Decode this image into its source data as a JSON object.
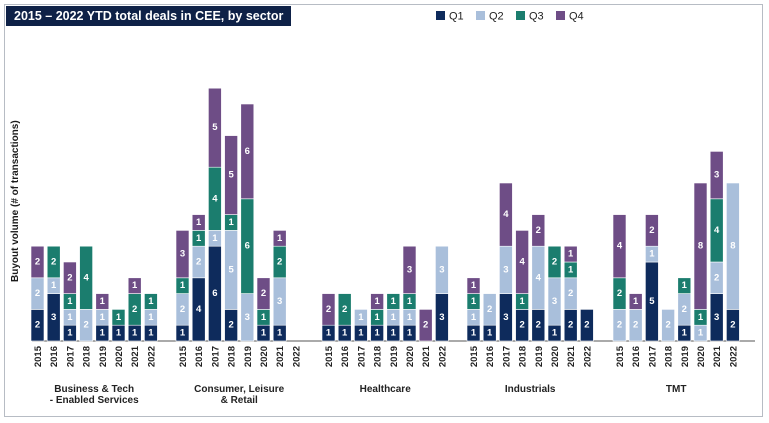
{
  "chart_data": {
    "type": "bar",
    "stacked": true,
    "title": "2015 – 2022 YTD total deals in CEE, by sector",
    "ylabel": "Buyout volume (# of transactions)",
    "ylim": [
      0,
      16
    ],
    "legend": {
      "placement": "top-right",
      "entries": [
        "Q1",
        "Q2",
        "Q3",
        "Q4"
      ]
    },
    "colors": {
      "Q1": "#0e2b5c",
      "Q2": "#a9bfdb",
      "Q3": "#1b7d6e",
      "Q4": "#6e4d86"
    },
    "label_colors": {
      "Q1": "#ffffff",
      "Q2": "#ffffff",
      "Q3": "#ffffff",
      "Q4": "#ffffff"
    },
    "years": [
      "2015",
      "2016",
      "2017",
      "2018",
      "2019",
      "2020",
      "2021",
      "2022"
    ],
    "groups": [
      {
        "name_lines": [
          "Business & Tech",
          "- Enabled Services"
        ],
        "bars": [
          [
            2,
            2,
            0,
            2
          ],
          [
            3,
            1,
            2,
            0
          ],
          [
            1,
            1,
            1,
            2
          ],
          [
            0,
            2,
            4,
            0
          ],
          [
            1,
            1,
            0,
            1
          ],
          [
            1,
            0,
            1,
            0
          ],
          [
            1,
            0,
            2,
            1
          ],
          [
            1,
            1,
            1,
            0
          ]
        ]
      },
      {
        "name_lines": [
          "Consumer, Leisure",
          "& Retail"
        ],
        "bars": [
          [
            1,
            2,
            1,
            3
          ],
          [
            4,
            2,
            1,
            1
          ],
          [
            6,
            1,
            4,
            5
          ],
          [
            2,
            5,
            1,
            5
          ],
          [
            0,
            3,
            6,
            6
          ],
          [
            1,
            0,
            1,
            2
          ],
          [
            1,
            3,
            2,
            1
          ],
          [
            0,
            0,
            0,
            0
          ]
        ]
      },
      {
        "name_lines": [
          "Healthcare"
        ],
        "bars": [
          [
            1,
            0,
            0,
            2
          ],
          [
            1,
            0,
            2,
            0
          ],
          [
            1,
            1,
            0,
            0
          ],
          [
            1,
            0,
            1,
            1
          ],
          [
            1,
            1,
            1,
            0
          ],
          [
            1,
            1,
            1,
            3
          ],
          [
            0,
            0,
            0,
            2
          ],
          [
            3,
            3,
            0,
            0
          ]
        ]
      },
      {
        "name_lines": [
          "Industrials"
        ],
        "bars": [
          [
            1,
            1,
            1,
            1
          ],
          [
            1,
            2,
            0,
            0
          ],
          [
            3,
            3,
            0,
            4
          ],
          [
            2,
            0,
            1,
            4
          ],
          [
            2,
            4,
            0,
            2
          ],
          [
            1,
            3,
            2,
            0
          ],
          [
            2,
            2,
            1,
            1
          ],
          [
            2,
            0,
            0,
            0
          ]
        ]
      },
      {
        "name_lines": [
          "TMT"
        ],
        "bars": [
          [
            0,
            2,
            2,
            4
          ],
          [
            0,
            2,
            0,
            1
          ],
          [
            5,
            1,
            0,
            2
          ],
          [
            0,
            2,
            0,
            0
          ],
          [
            1,
            2,
            1,
            0
          ],
          [
            0,
            1,
            1,
            8
          ],
          [
            3,
            2,
            4,
            3
          ],
          [
            2,
            8,
            0,
            0
          ]
        ]
      }
    ]
  }
}
